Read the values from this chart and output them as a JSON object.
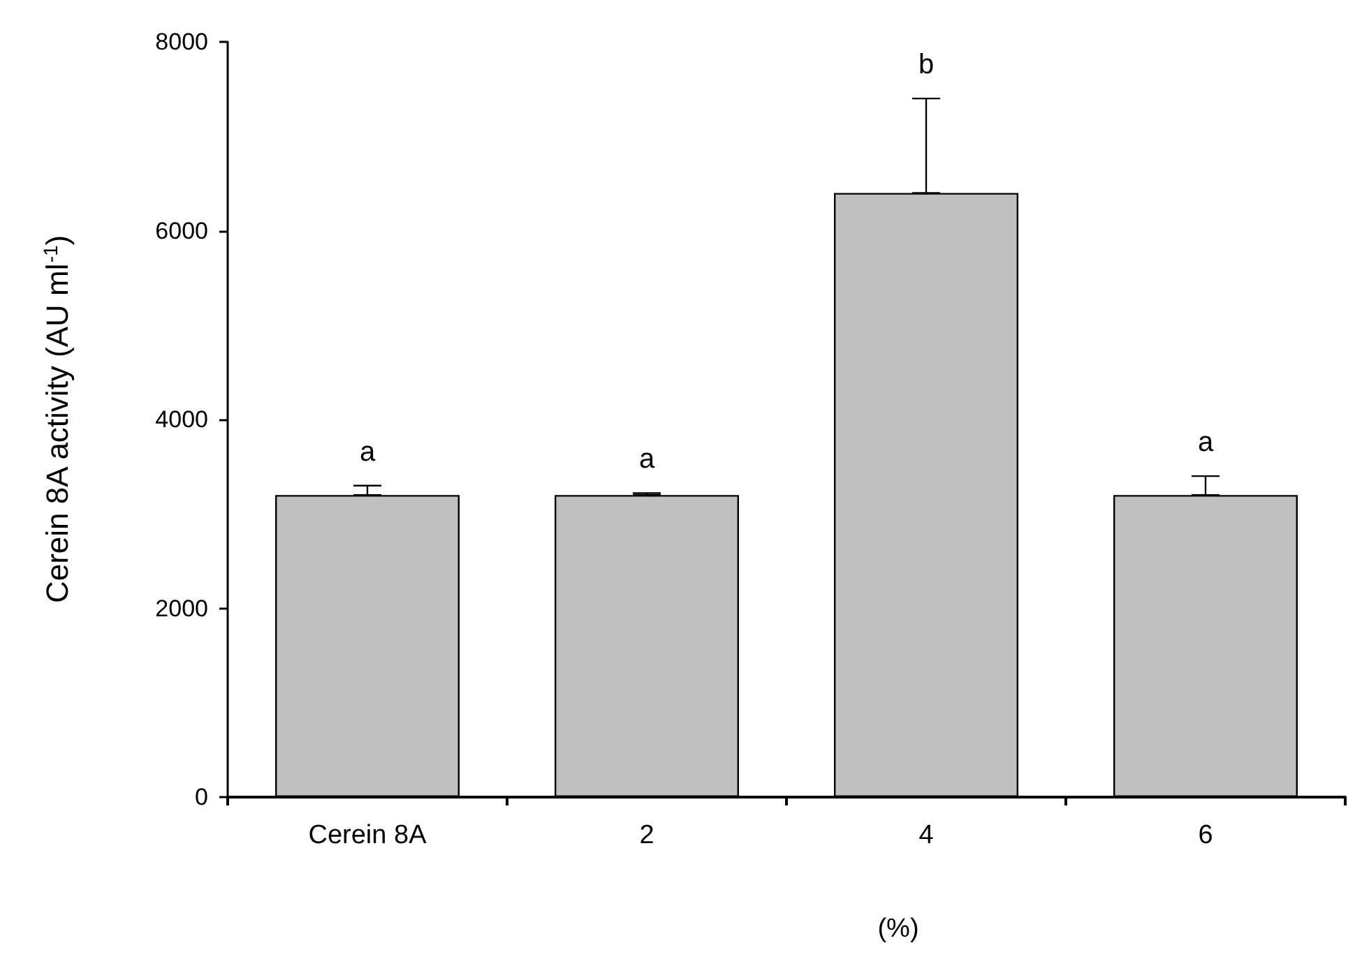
{
  "chart_data": {
    "type": "bar",
    "ylabel": "Cerein 8A activity (AU ml$^{-1}$)",
    "xlabel": "(%)",
    "categories": [
      "Cerein 8A",
      "2",
      "4",
      "6"
    ],
    "values": [
      3200,
      3200,
      6400,
      3200
    ],
    "errors": [
      [
        3200,
        3300
      ],
      [
        3200,
        3220
      ],
      [
        6400,
        7400
      ],
      [
        3200,
        3400
      ]
    ],
    "color": "#c0c0c0",
    "ylim": [
      0,
      8000
    ],
    "yticks": [
      0,
      2000,
      4000,
      6000,
      8000
    ],
    "grid": false,
    "annotations": [
      "a",
      "a",
      "b",
      "a"
    ]
  }
}
